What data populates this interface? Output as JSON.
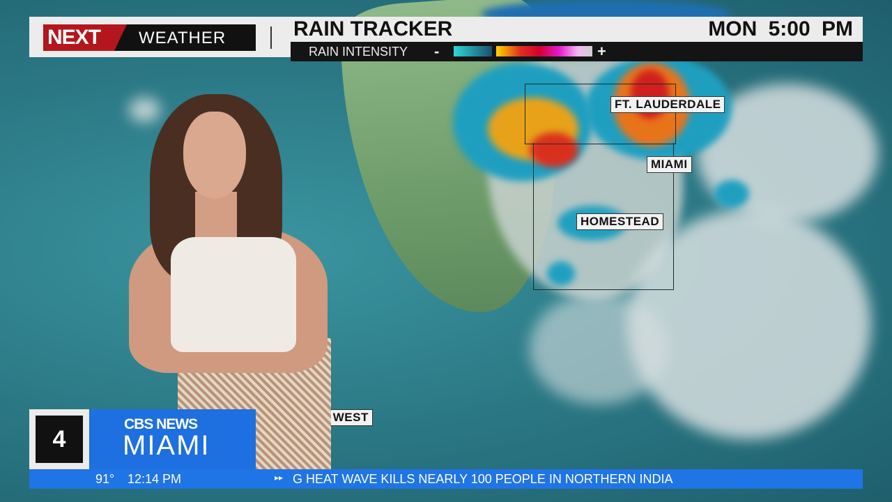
{
  "header": {
    "logo_next": "NEXT",
    "logo_weather": "WEATHER",
    "title": "RAIN TRACKER",
    "time": "MON  5:00 PM",
    "legend": {
      "label": "RAIN INTENSITY",
      "minus": "-",
      "plus": "+",
      "colors": [
        "#2fd6d4",
        "#1b4f70",
        "#ffd800",
        "#e0301d",
        "#e219c9",
        "#cfcfcf"
      ]
    }
  },
  "map": {
    "cities": [
      "FT. LAUDERDALE",
      "MIAMI",
      "HOMESTEAD",
      "Y WEST"
    ]
  },
  "station_bug": {
    "channel": "4",
    "network": "CBS NEWS",
    "city": "MIAMI",
    "accent": "#1e6fe0"
  },
  "ticker": {
    "temperature": "91°",
    "time": "12:14 PM",
    "headline": "G HEAT WAVE KILLS NEARLY 100 PEOPLE IN NORTHERN INDIA"
  }
}
